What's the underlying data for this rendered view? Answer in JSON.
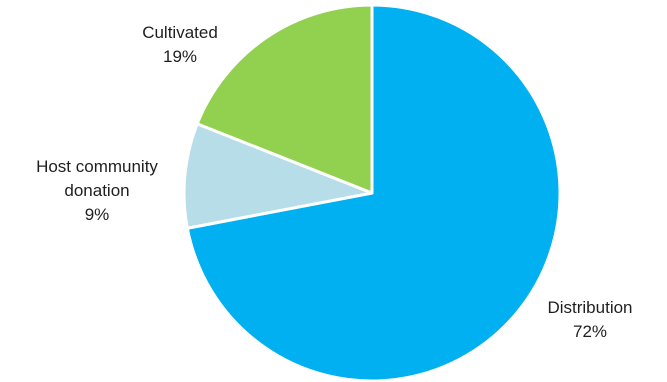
{
  "chart_data": {
    "type": "pie",
    "title": "",
    "slices": [
      {
        "label": "Distribution",
        "value": 72,
        "value_label": "72%",
        "color": "#00b0f0"
      },
      {
        "label": "Host community donation",
        "label_lines": [
          "Host community",
          "donation"
        ],
        "value": 9,
        "value_label": "9%",
        "color": "#b7dee8"
      },
      {
        "label": "Cultivated",
        "value": 19,
        "value_label": "19%",
        "color": "#92d050"
      }
    ],
    "start_angle": "12 o'clock",
    "direction": "clockwise",
    "legend": "none"
  }
}
